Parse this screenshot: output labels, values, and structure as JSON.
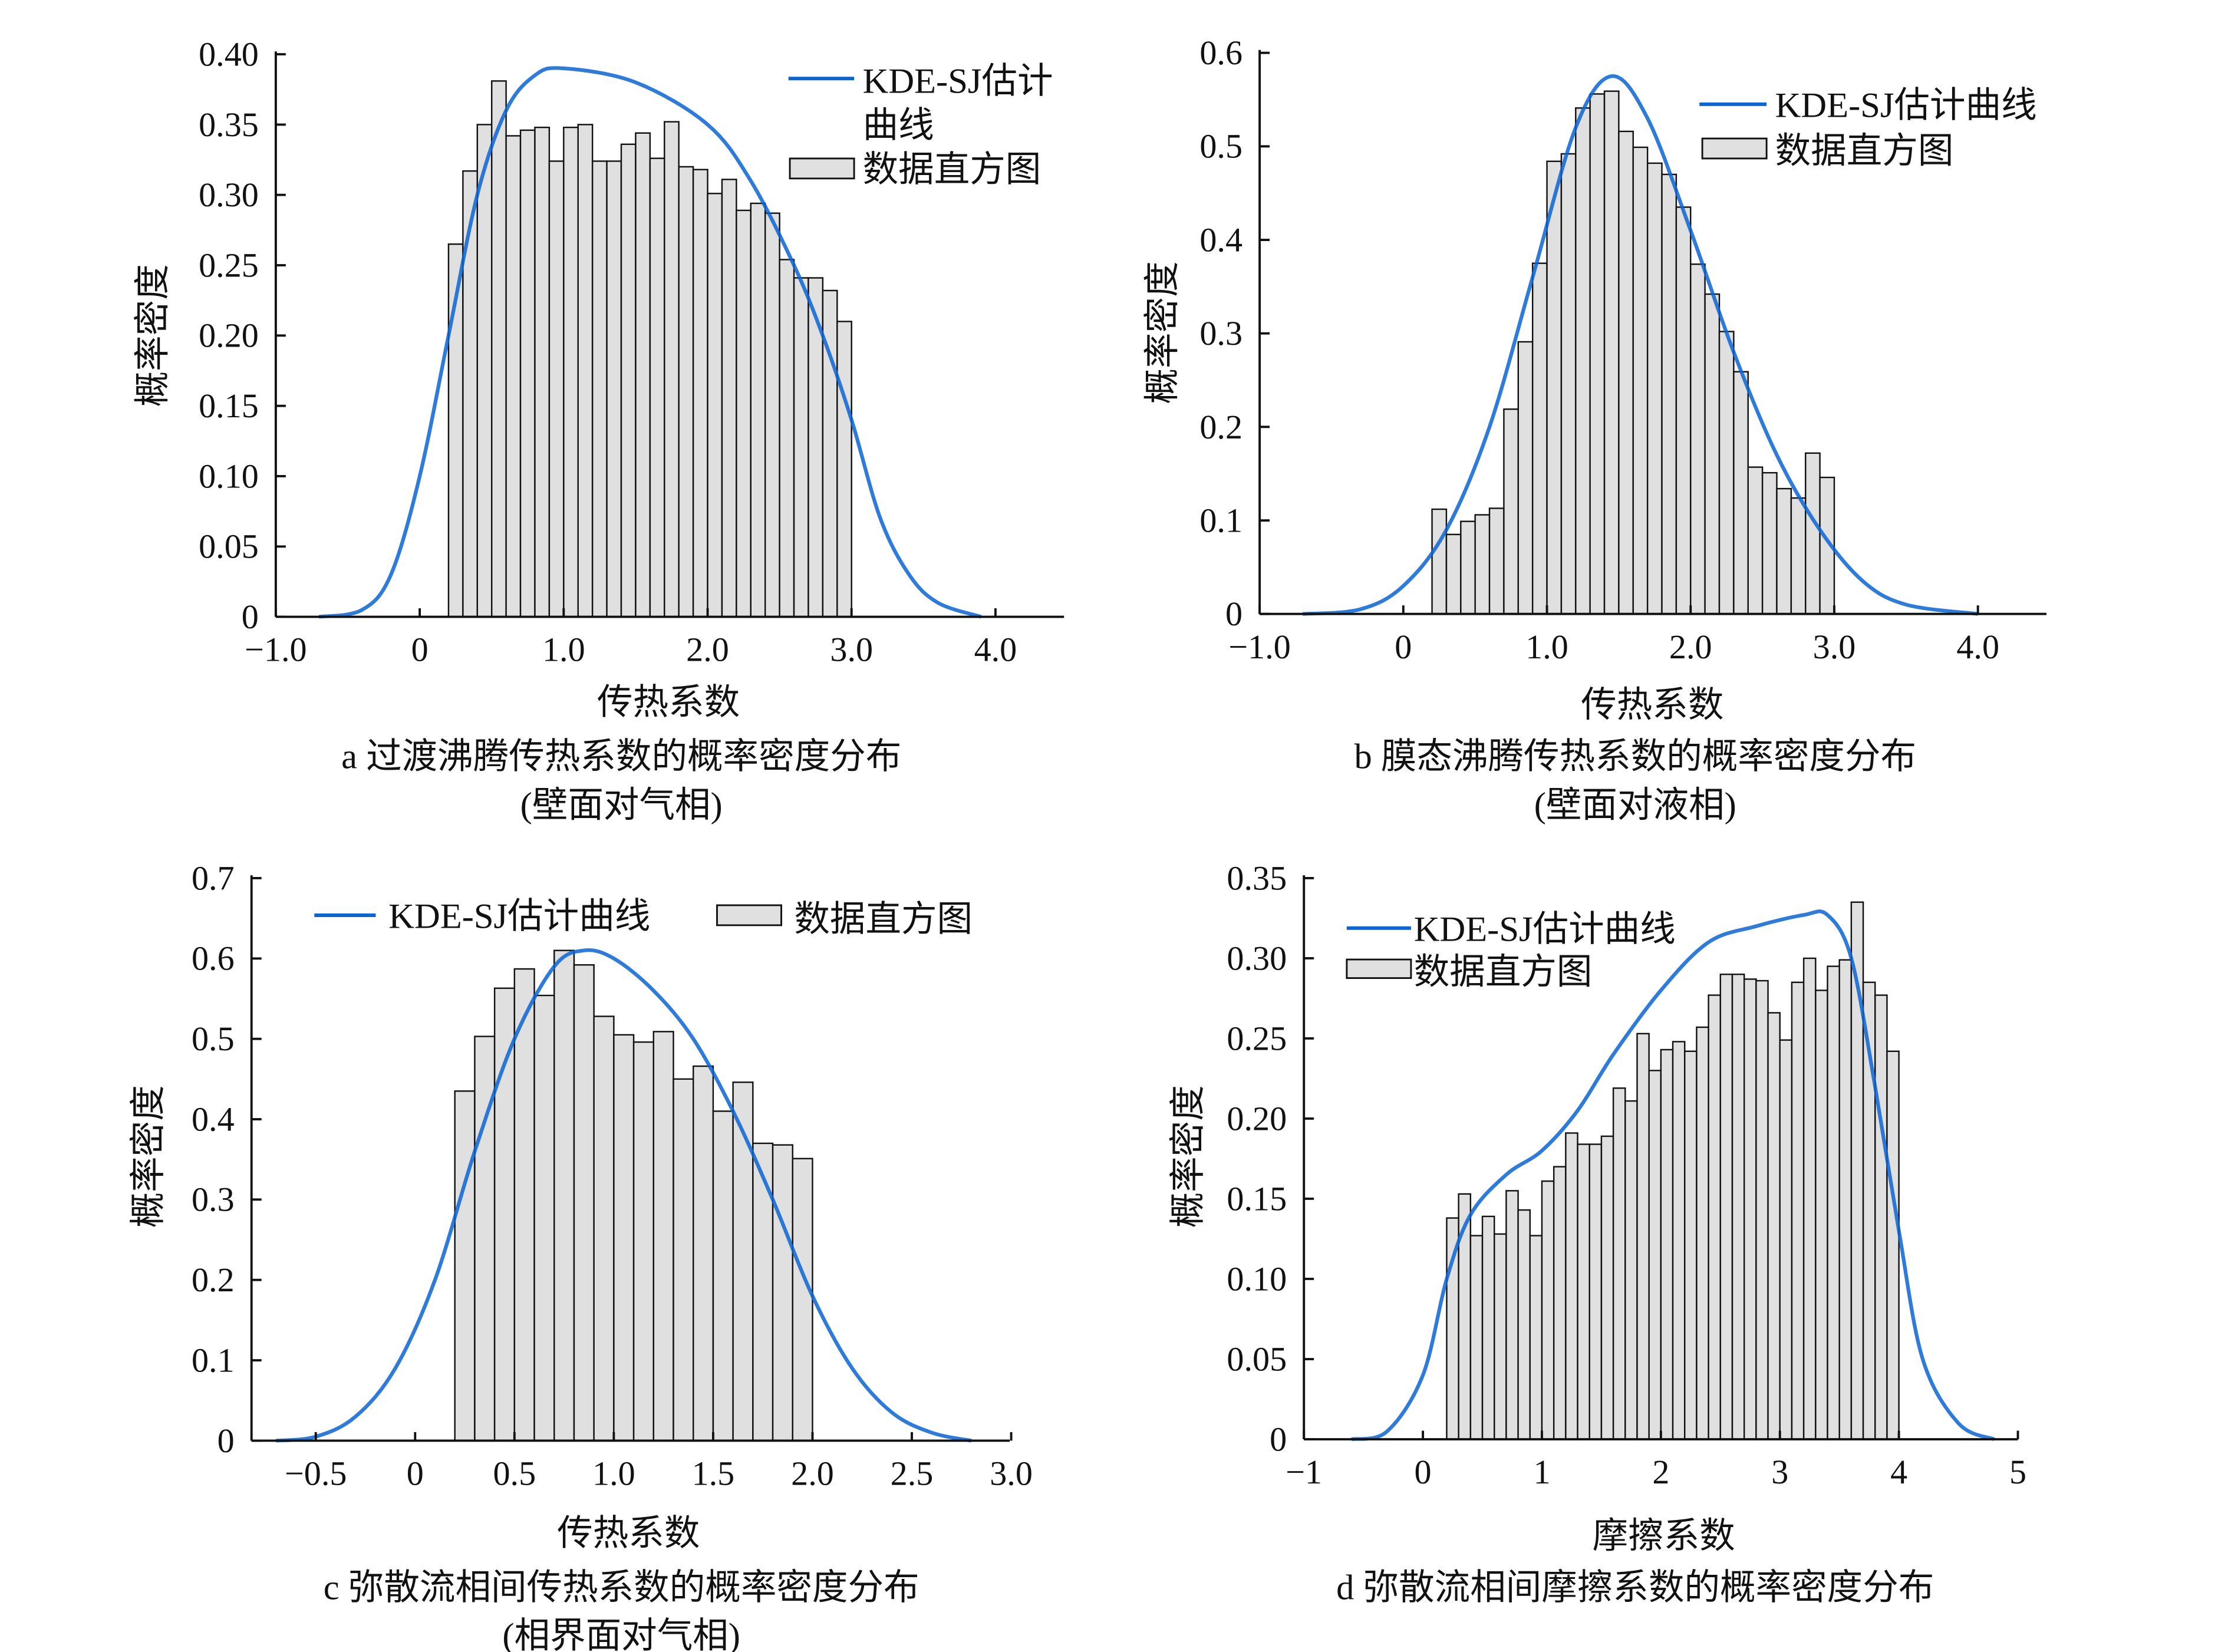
{
  "chart_data": [
    {
      "type": "bar",
      "panel": "a",
      "caption_line1": "a  过渡沸腾传热系数的概率密度分布",
      "caption_line2": "(壁面对气相)",
      "xlabel": "传热系数",
      "ylabel": "概率密度",
      "xlim": [
        -1.0,
        4.5
      ],
      "ylim": [
        0,
        0.4
      ],
      "xticks": [
        {
          "v": -1.0,
          "t": "−1.0"
        },
        {
          "v": 0,
          "t": "0"
        },
        {
          "v": 1.0,
          "t": "1.0"
        },
        {
          "v": 2.0,
          "t": "2.0"
        },
        {
          "v": 3.0,
          "t": "3.0"
        },
        {
          "v": 4.0,
          "t": "4.0"
        }
      ],
      "yticks": [
        {
          "v": 0,
          "t": "0"
        },
        {
          "v": 0.05,
          "t": "0.05"
        },
        {
          "v": 0.1,
          "t": "0.10"
        },
        {
          "v": 0.15,
          "t": "0.15"
        },
        {
          "v": 0.2,
          "t": "0.20"
        },
        {
          "v": 0.25,
          "t": "0.25"
        },
        {
          "v": 0.3,
          "t": "0.30"
        },
        {
          "v": 0.35,
          "t": "0.35"
        },
        {
          "v": 0.4,
          "t": "0.40"
        }
      ],
      "legend": {
        "line_label_1": "KDE-SJ估计",
        "line_label_2": "曲线",
        "bar_label": "数据直方图",
        "placement": "top-right"
      },
      "hist_start": 0.2,
      "bin_width": 0.1,
      "hist_values": [
        0.265,
        0.317,
        0.35,
        0.381,
        0.342,
        0.346,
        0.348,
        0.324,
        0.348,
        0.35,
        0.324,
        0.324,
        0.336,
        0.344,
        0.326,
        0.352,
        0.32,
        0.318,
        0.301,
        0.311,
        0.289,
        0.294,
        0.287,
        0.254,
        0.241,
        0.241,
        0.232,
        0.21
      ],
      "kde": {
        "name": "KDE-SJ估计曲线",
        "x": [
          -0.7,
          -0.4,
          -0.2,
          0,
          0.2,
          0.4,
          0.6,
          0.8,
          1.0,
          1.5,
          2.0,
          2.3,
          2.6,
          2.8,
          3.0,
          3.2,
          3.4,
          3.6,
          3.9
        ],
        "y": [
          0,
          0.005,
          0.03,
          0.1,
          0.2,
          0.3,
          0.36,
          0.385,
          0.39,
          0.38,
          0.35,
          0.31,
          0.25,
          0.2,
          0.14,
          0.07,
          0.03,
          0.01,
          0.0
        ]
      }
    },
    {
      "type": "bar",
      "panel": "b",
      "caption_line1": "b  膜态沸腾传热系数的概率密度分布",
      "caption_line2": "(壁面对液相)",
      "xlabel": "传热系数",
      "ylabel": "概率密度",
      "xlim": [
        -1.0,
        4.5
      ],
      "ylim": [
        0,
        0.6
      ],
      "xticks": [
        {
          "v": -1.0,
          "t": "−1.0"
        },
        {
          "v": 0,
          "t": "0"
        },
        {
          "v": 1.0,
          "t": "1.0"
        },
        {
          "v": 2.0,
          "t": "2.0"
        },
        {
          "v": 3.0,
          "t": "3.0"
        },
        {
          "v": 4.0,
          "t": "4.0"
        }
      ],
      "yticks": [
        {
          "v": 0,
          "t": "0"
        },
        {
          "v": 0.1,
          "t": "0.1"
        },
        {
          "v": 0.2,
          "t": "0.2"
        },
        {
          "v": 0.3,
          "t": "0.3"
        },
        {
          "v": 0.4,
          "t": "0.4"
        },
        {
          "v": 0.5,
          "t": "0.5"
        },
        {
          "v": 0.6,
          "t": "0.6"
        }
      ],
      "legend": {
        "line_label_1": "KDE-SJ估计曲线",
        "line_label_2": "",
        "bar_label": "数据直方图",
        "placement": "top-right"
      },
      "hist_start": 0.2,
      "bin_width": 0.1,
      "hist_values": [
        0.112,
        0.085,
        0.099,
        0.106,
        0.113,
        0.219,
        0.291,
        0.375,
        0.484,
        0.492,
        0.541,
        0.556,
        0.559,
        0.516,
        0.499,
        0.482,
        0.47,
        0.435,
        0.374,
        0.342,
        0.302,
        0.259,
        0.157,
        0.151,
        0.134,
        0.124,
        0.172,
        0.146
      ],
      "kde": {
        "name": "KDE-SJ估计曲线",
        "x": [
          -0.7,
          -0.3,
          0,
          0.3,
          0.6,
          0.9,
          1.2,
          1.45,
          1.7,
          2.0,
          2.3,
          2.6,
          2.9,
          3.2,
          3.5,
          4.0
        ],
        "y": [
          0,
          0.005,
          0.03,
          0.09,
          0.2,
          0.36,
          0.52,
          0.575,
          0.53,
          0.41,
          0.28,
          0.17,
          0.09,
          0.035,
          0.01,
          0
        ]
      }
    },
    {
      "type": "bar",
      "panel": "c",
      "caption_line1": "c  弥散流相间传热系数的概率密度分布",
      "caption_line2": "(相界面对气相)",
      "xlabel": "传热系数",
      "ylabel": "概率密度",
      "xlim": [
        -0.83,
        3.0
      ],
      "ylim": [
        0,
        0.7
      ],
      "xticks": [
        {
          "v": -0.5,
          "t": "−0.5"
        },
        {
          "v": 0,
          "t": "0"
        },
        {
          "v": 0.5,
          "t": "0.5"
        },
        {
          "v": 1.0,
          "t": "1.0"
        },
        {
          "v": 1.5,
          "t": "1.5"
        },
        {
          "v": 2.0,
          "t": "2.0"
        },
        {
          "v": 2.5,
          "t": "2.5"
        },
        {
          "v": 3.0,
          "t": "3.0"
        }
      ],
      "yticks": [
        {
          "v": 0,
          "t": "0"
        },
        {
          "v": 0.1,
          "t": "0.1"
        },
        {
          "v": 0.2,
          "t": "0.2"
        },
        {
          "v": 0.3,
          "t": "0.3"
        },
        {
          "v": 0.4,
          "t": "0.4"
        },
        {
          "v": 0.5,
          "t": "0.5"
        },
        {
          "v": 0.6,
          "t": "0.6"
        },
        {
          "v": 0.7,
          "t": "0.7"
        }
      ],
      "legend": {
        "line_label_1": "KDE-SJ估计曲线",
        "line_label_2": "",
        "bar_label": "数据直方图",
        "placement": "top"
      },
      "hist_start": 0.2,
      "bin_width": 0.1,
      "hist_values": [
        0.435,
        0.503,
        0.563,
        0.587,
        0.554,
        0.61,
        0.592,
        0.528,
        0.505,
        0.496,
        0.509,
        0.45,
        0.466,
        0.41,
        0.446,
        0.37,
        0.368,
        0.351
      ],
      "kde": {
        "name": "KDE-SJ估计曲线",
        "x": [
          -0.7,
          -0.5,
          -0.3,
          -0.1,
          0.1,
          0.3,
          0.5,
          0.7,
          0.85,
          1.0,
          1.2,
          1.4,
          1.6,
          1.8,
          2.0,
          2.2,
          2.4,
          2.6,
          2.8
        ],
        "y": [
          0,
          0.005,
          0.03,
          0.09,
          0.2,
          0.36,
          0.5,
          0.59,
          0.61,
          0.6,
          0.56,
          0.5,
          0.41,
          0.3,
          0.18,
          0.09,
          0.035,
          0.01,
          0
        ]
      }
    },
    {
      "type": "bar",
      "panel": "d",
      "caption_line1": "d  弥散流相间摩擦系数的概率密度分布",
      "caption_line2": "",
      "xlabel": "摩擦系数",
      "ylabel": "概率密度",
      "xlim": [
        -1,
        5
      ],
      "ylim": [
        0,
        0.35
      ],
      "xticks": [
        {
          "v": -1,
          "t": "−1"
        },
        {
          "v": 0,
          "t": "0"
        },
        {
          "v": 1,
          "t": "1"
        },
        {
          "v": 2,
          "t": "2"
        },
        {
          "v": 3,
          "t": "3"
        },
        {
          "v": 4,
          "t": "4"
        },
        {
          "v": 5,
          "t": "5"
        }
      ],
      "yticks": [
        {
          "v": 0,
          "t": "0"
        },
        {
          "v": 0.05,
          "t": "0.05"
        },
        {
          "v": 0.1,
          "t": "0.10"
        },
        {
          "v": 0.15,
          "t": "0.15"
        },
        {
          "v": 0.2,
          "t": "0.20"
        },
        {
          "v": 0.25,
          "t": "0.25"
        },
        {
          "v": 0.3,
          "t": "0.30"
        },
        {
          "v": 0.35,
          "t": "0.35"
        }
      ],
      "legend": {
        "line_label_1": "KDE-SJ估计曲线",
        "line_label_2": "",
        "bar_label": "数据直方图",
        "placement": "top-left"
      },
      "hist_start": 0.2,
      "bin_width": 0.1,
      "hist_values": [
        0.138,
        0.153,
        0.127,
        0.139,
        0.128,
        0.155,
        0.143,
        0.127,
        0.161,
        0.17,
        0.191,
        0.184,
        0.184,
        0.189,
        0.219,
        0.211,
        0.253,
        0.23,
        0.243,
        0.248,
        0.242,
        0.257,
        0.277,
        0.29,
        0.29,
        0.287,
        0.286,
        0.266,
        0.249,
        0.285,
        0.3,
        0.28,
        0.295,
        0.299,
        0.335,
        0.285,
        0.277,
        0.242
      ],
      "kde": {
        "name": "KDE-SJ估计曲线",
        "x": [
          -0.6,
          -0.3,
          0,
          0.2,
          0.4,
          0.7,
          1.0,
          1.3,
          1.6,
          2.0,
          2.4,
          2.8,
          3.2,
          3.4,
          3.6,
          3.8,
          4.0,
          4.2,
          4.5,
          4.8
        ],
        "y": [
          0,
          0.005,
          0.04,
          0.1,
          0.14,
          0.165,
          0.18,
          0.205,
          0.24,
          0.28,
          0.31,
          0.32,
          0.327,
          0.327,
          0.3,
          0.22,
          0.13,
          0.05,
          0.01,
          0
        ]
      }
    }
  ],
  "colors": {
    "kde": "#0a64d2",
    "bar_fill": "#e0e0e0",
    "bar_stroke": "#111111"
  }
}
